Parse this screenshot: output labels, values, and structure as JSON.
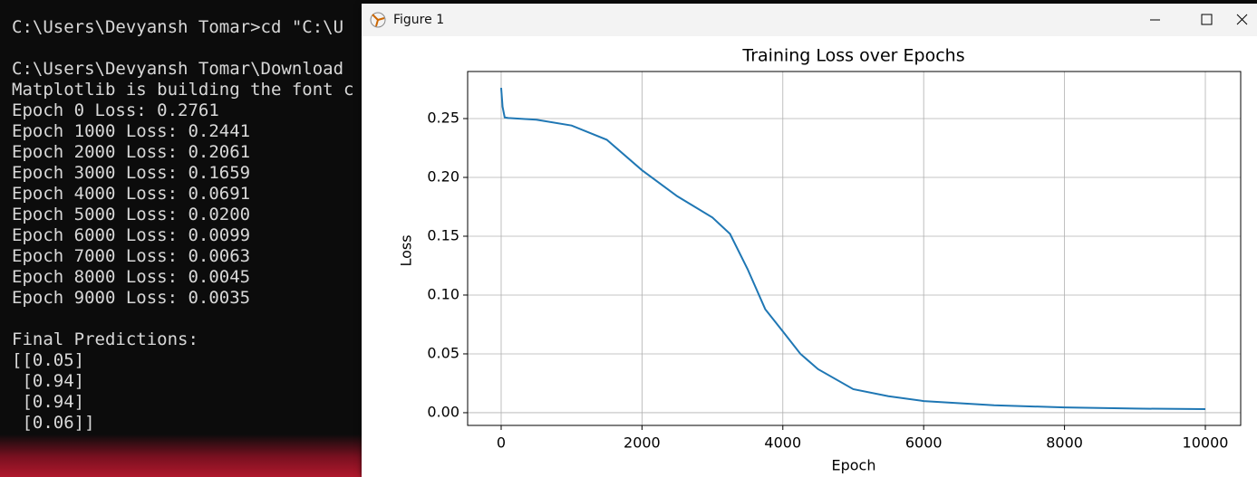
{
  "terminal": {
    "blocks": [
      {
        "lines": [
          "C:\\Users\\Devyansh Tomar>cd \"C:\\U"
        ]
      },
      {
        "lines": [
          "C:\\Users\\Devyansh Tomar\\Download",
          "Matplotlib is building the font c",
          "Epoch 0 Loss: 0.2761",
          "Epoch 1000 Loss: 0.2441",
          "Epoch 2000 Loss: 0.2061",
          "Epoch 3000 Loss: 0.1659",
          "Epoch 4000 Loss: 0.0691",
          "Epoch 5000 Loss: 0.0200",
          "Epoch 6000 Loss: 0.0099",
          "Epoch 7000 Loss: 0.0063",
          "Epoch 8000 Loss: 0.0045",
          "Epoch 9000 Loss: 0.0035"
        ]
      },
      {
        "lines": [
          "Final Predictions:",
          "[[0.05]",
          " [0.94]",
          " [0.94]",
          " [0.06]]"
        ]
      }
    ]
  },
  "window": {
    "title": "Figure 1"
  },
  "chart_data": {
    "type": "line",
    "title": "Training Loss over Epochs",
    "xlabel": "Epoch",
    "ylabel": "Loss",
    "x": [
      0,
      20,
      50,
      100,
      500,
      1000,
      1500,
      2000,
      2500,
      3000,
      3250,
      3500,
      3750,
      4000,
      4250,
      4500,
      5000,
      5500,
      6000,
      7000,
      8000,
      9000,
      10000
    ],
    "series": [
      {
        "color": "#1f77b4",
        "values": [
          0.2761,
          0.26,
          0.251,
          0.2505,
          0.249,
          0.2441,
          0.232,
          0.2061,
          0.184,
          0.1659,
          0.152,
          0.122,
          0.088,
          0.0691,
          0.05,
          0.037,
          0.02,
          0.014,
          0.0099,
          0.0063,
          0.0045,
          0.0035,
          0.003
        ]
      }
    ],
    "xlim": [
      -476,
      10502
    ],
    "ylim": [
      -0.0108,
      0.29
    ],
    "xticks": [
      0,
      2000,
      4000,
      6000,
      8000,
      10000
    ],
    "yticks": [
      {
        "value": 0,
        "label": "0.00"
      },
      {
        "value": 0.05,
        "label": "0.05"
      },
      {
        "value": 0.1,
        "label": "0.10"
      },
      {
        "value": 0.15,
        "label": "0.15"
      },
      {
        "value": 0.2,
        "label": "0.20"
      },
      {
        "value": 0.25,
        "label": "0.25"
      }
    ],
    "grid": true
  }
}
